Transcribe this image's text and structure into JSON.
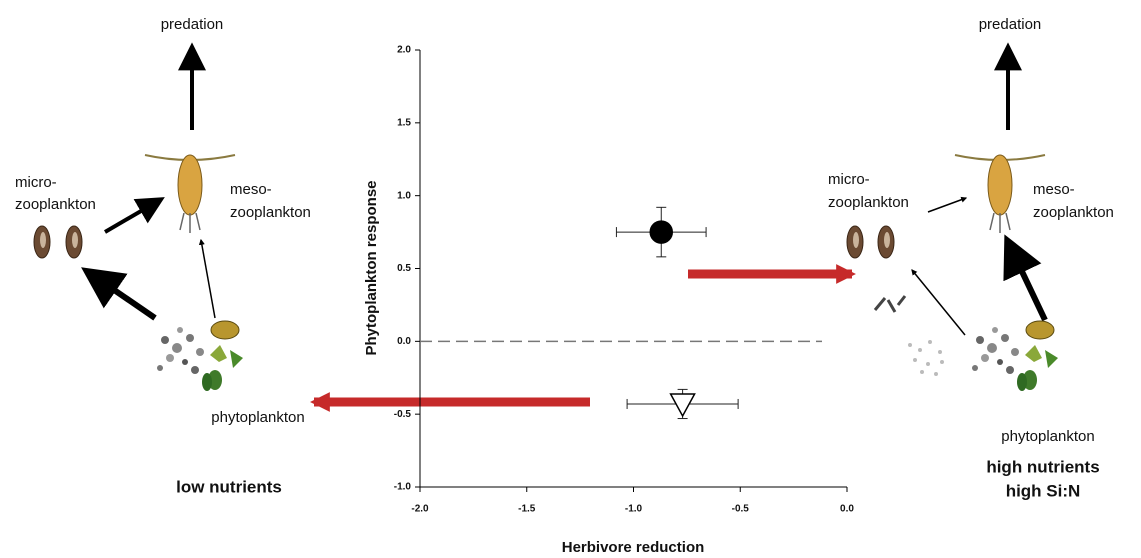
{
  "chart_data": {
    "type": "scatter",
    "x_label": "Herbivore reduction",
    "y_label": "Phytoplankton response",
    "xlim": [
      -2,
      0
    ],
    "ylim": [
      -1,
      2
    ],
    "xticks": [
      {
        "value": -2,
        "label": "-2.0"
      },
      {
        "value": -1.5,
        "label": "-1.5"
      },
      {
        "value": -1,
        "label": "-1.0"
      },
      {
        "value": -0.5,
        "label": "-0.5"
      },
      {
        "value": 0,
        "label": "0.0"
      }
    ],
    "yticks": [
      {
        "value": -1,
        "label": "-1.0"
      },
      -0.5,
      {
        "value": 0,
        "label": "0.0"
      },
      0.5,
      {
        "value": 1,
        "label": "1.0"
      },
      1.5,
      {
        "value": 2,
        "label": "2.0"
      }
    ],
    "reference_line": 0,
    "series": [
      {
        "marker": "circle",
        "color": "#000000",
        "x": [
          -0.87
        ],
        "values": [
          0.75
        ],
        "x_err": [
          0.21
        ],
        "y_err": [
          0.17
        ]
      },
      {
        "marker": "triangle-down",
        "color": "#ffffff",
        "x": [
          -0.77
        ],
        "values": [
          -0.43
        ],
        "x_err": [
          0.26
        ],
        "y_err": [
          0.1
        ]
      }
    ]
  },
  "left_panel": {
    "predation": "predation",
    "micro": [
      "micro-",
      "zooplankton"
    ],
    "meso": [
      "meso-",
      "zooplankton"
    ],
    "phytoplankton": "phytoplankton",
    "condition": [
      "low nutrients"
    ]
  },
  "right_panel": {
    "predation": "predation",
    "micro": [
      "micro-",
      "zooplankton"
    ],
    "meso": [
      "meso-",
      "zooplankton"
    ],
    "phytoplankton": "phytoplankton",
    "condition": [
      "high nutrients",
      "high Si:N"
    ]
  }
}
